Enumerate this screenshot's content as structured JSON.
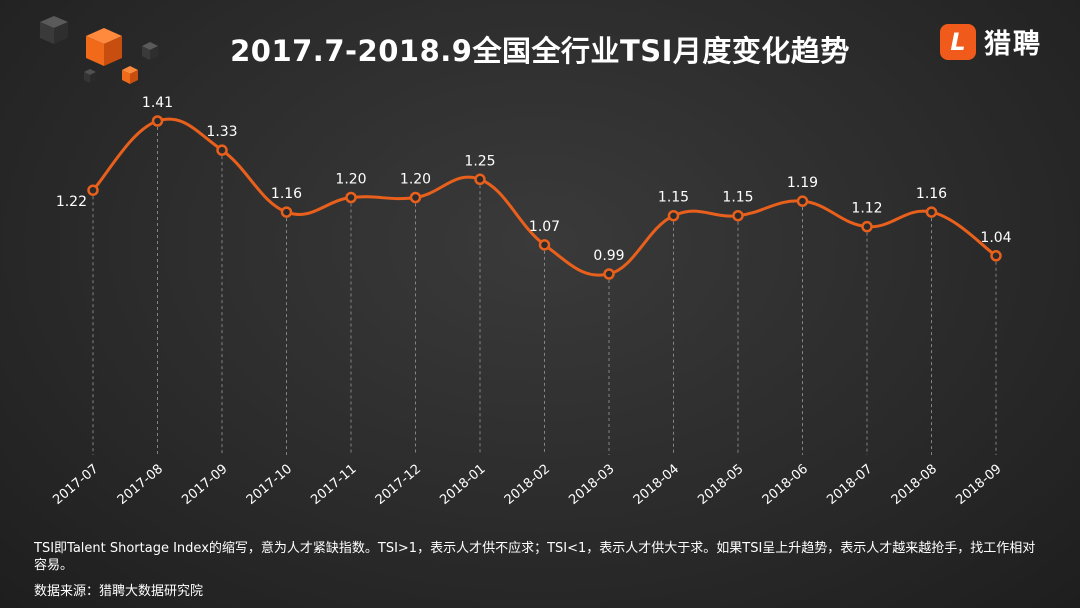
{
  "title": "2017.7-2018.9全国全行业TSI月度变化趋势",
  "logo": {
    "mark": "L",
    "text": "猎聘"
  },
  "colors": {
    "line": "#e8601c",
    "accent": "#f05a1a",
    "grid": "#9a9a9a"
  },
  "chart_data": {
    "type": "line",
    "title": "2017.7-2018.9全国全行业TSI月度变化趋势",
    "xlabel": "",
    "ylabel": "",
    "categories": [
      "2017-07",
      "2017-08",
      "2017-09",
      "2017-10",
      "2017-11",
      "2017-12",
      "2018-01",
      "2018-02",
      "2018-03",
      "2018-04",
      "2018-05",
      "2018-06",
      "2018-07",
      "2018-08",
      "2018-09"
    ],
    "series": [
      {
        "values": [
          1.22,
          1.41,
          1.33,
          1.16,
          1.2,
          1.2,
          1.25,
          1.07,
          0.99,
          1.15,
          1.15,
          1.19,
          1.12,
          1.16,
          1.04
        ]
      }
    ],
    "data_labels": [
      "1.22",
      "1.41",
      "1.33",
      "1.16",
      "1.20",
      "1.20",
      "1.25",
      "1.07",
      "0.99",
      "1.15",
      "1.15",
      "1.19",
      "1.12",
      "1.16",
      "1.04"
    ],
    "grid": "vertical dashed lines at each category",
    "legend": "none"
  },
  "footnote": "TSI即Talent Shortage Index的缩写，意为人才紧缺指数。TSI>1，表示人才供不应求；TSI<1，表示人才供大于求。如果TSI呈上升趋势，表示人才越来越抢手，找工作相对容易。",
  "source": "数据来源：猎聘大数据研究院"
}
